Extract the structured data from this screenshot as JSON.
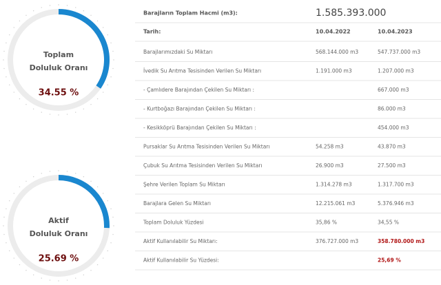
{
  "gauges": [
    {
      "label_lines": [
        "Toplam",
        "Doluluk Oranı"
      ],
      "value": 34.55,
      "value_label": "34.55 %"
    },
    {
      "label_lines": [
        "Aktif",
        "Doluluk Oranı"
      ],
      "value": 25.69,
      "value_label": "25.69 %"
    }
  ],
  "gauge_style": {
    "arc_color": "#1a87cf",
    "track_color": "#ececec",
    "value_color": "#6e1010"
  },
  "table": {
    "total": {
      "label": "Barajların Toplam Hacmi (m3):",
      "value": "1.585.393.000"
    },
    "header": [
      "Tarih:",
      "10.04.2022",
      "10.04.2023"
    ],
    "rows": [
      [
        "Barajlarımızdaki Su Miktarı",
        "568.144.000 m3",
        "547.737.000 m3"
      ],
      [
        "İvedik Su Arıtma Tesisinden Verilen Su Miktarı",
        "1.191.000 m3",
        "1.207.000 m3"
      ],
      [
        "- Çamlıdere Barajından Çekilen Su Miktarı :",
        null,
        "667.000 m3"
      ],
      [
        "- Kurtboğazı Barajından Çekilen Su Miktarı :",
        null,
        "86.000 m3"
      ],
      [
        "- Kesikköprü Barajından Çekilen Su Miktarı :",
        null,
        "454.000 m3"
      ],
      [
        "Pursaklar Su Arıtma Tesisinden Verilen Su Miktarı",
        "54.258 m3",
        "43.870 m3"
      ],
      [
        "Çubuk Su Arıtma Tesisinden Verilen Su Miktarı",
        "26.900 m3",
        "27.500 m3"
      ],
      [
        "Şehre Verilen Toplam Su Miktarı",
        "1.314.278 m3",
        "1.317.700 m3"
      ],
      [
        "Barajlara Gelen Su Miktarı",
        "12.215.061 m3",
        "5.376.946 m3"
      ],
      [
        "Toplam Doluluk Yüzdesi",
        "35,86 %",
        "34,55 %"
      ],
      [
        "Aktif Kullanılabilir Su Miktarı:",
        "376.727.000 m3",
        "358.780.000 m3"
      ],
      [
        "Aktif Kullanılabilir Su Yüzdesi:",
        null,
        "25,69 %"
      ]
    ],
    "highlight_rows": [
      10,
      11
    ],
    "highlight_color": "#b01515"
  }
}
